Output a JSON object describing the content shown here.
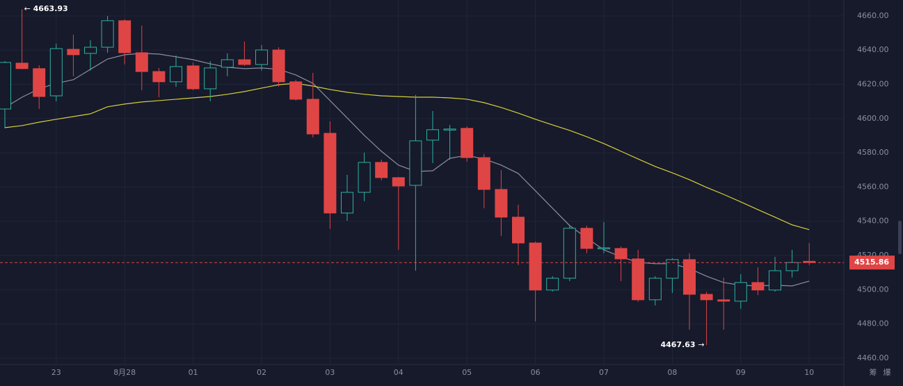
{
  "chart_data": {
    "type": "candlestick",
    "categories": [
      null,
      null,
      null,
      "23",
      null,
      null,
      null,
      "8月28",
      null,
      null,
      null,
      "01",
      null,
      null,
      null,
      "02",
      null,
      null,
      null,
      "03",
      null,
      null,
      null,
      "04",
      null,
      null,
      null,
      "05",
      null,
      null,
      null,
      "06",
      null,
      null,
      null,
      "07",
      null,
      null,
      null,
      "08",
      null,
      null,
      null,
      "09",
      null,
      null,
      null,
      "10"
    ],
    "open": [
      4605.6,
      4632.4,
      4629.2,
      4613.3,
      4640.5,
      4638.1,
      4641.7,
      4657.2,
      4638.5,
      4627.5,
      4621.5,
      4630.8,
      4617.4,
      4630.0,
      4634.4,
      4631.6,
      4640.1,
      4621.5,
      4611.3,
      4591.4,
      4544.8,
      4556.9,
      4574.4,
      4565.5,
      4561.0,
      4587.4,
      4593.5,
      4594.3,
      4577.2,
      4558.6,
      4542.4,
      4527.3,
      4499.8,
      4506.7,
      4535.9,
      4524.1,
      4524.1,
      4518.0,
      4494.1,
      4506.7,
      4517.6,
      4497.3,
      4494.1,
      4493.3,
      4504.2,
      4499.8,
      4511.1,
      4516.6
    ],
    "high": [
      4633.6,
      4663.93,
      4631.2,
      4643.8,
      4649.0,
      4645.8,
      4660.0,
      4658.0,
      4654.3,
      4629.6,
      4636.9,
      4632.8,
      4633.6,
      4638.1,
      4645.0,
      4643.0,
      4641.7,
      4622.7,
      4626.7,
      4598.3,
      4567.1,
      4580.1,
      4576.0,
      4565.9,
      4613.8,
      4604.4,
      4596.3,
      4595.5,
      4579.3,
      4569.9,
      4549.7,
      4528.1,
      4507.9,
      4537.5,
      4537.5,
      4539.5,
      4525.3,
      4523.3,
      4507.9,
      4518.4,
      4521.3,
      4498.9,
      4507.1,
      4509.1,
      4513.1,
      4519.2,
      4523.3,
      4527.3
    ],
    "low": [
      4594.3,
      4628.8,
      4605.6,
      4610.1,
      4624.7,
      4628.0,
      4638.5,
      4631.6,
      4616.6,
      4612.5,
      4618.6,
      4616.6,
      4610.1,
      4624.7,
      4630.8,
      4628.0,
      4618.6,
      4610.5,
      4589.0,
      4535.5,
      4540.3,
      4551.7,
      4563.9,
      4523.3,
      4511.1,
      4574.0,
      4576.0,
      4574.8,
      4547.6,
      4531.4,
      4514.4,
      4481.5,
      4498.9,
      4505.0,
      4521.3,
      4521.3,
      4505.0,
      4492.9,
      4490.8,
      4498.1,
      4476.6,
      4467.63,
      4476.6,
      4488.8,
      4496.9,
      4498.9,
      4507.1,
      4514.4
    ],
    "close": [
      4632.8,
      4629.2,
      4612.9,
      4640.9,
      4637.3,
      4641.7,
      4657.2,
      4638.5,
      4627.5,
      4621.5,
      4630.4,
      4617.4,
      4629.6,
      4634.4,
      4631.6,
      4640.1,
      4621.5,
      4611.3,
      4591.0,
      4544.8,
      4556.9,
      4574.4,
      4565.5,
      4560.6,
      4587.0,
      4593.5,
      4593.9,
      4577.2,
      4558.6,
      4542.4,
      4527.3,
      4499.8,
      4506.7,
      4535.9,
      4524.1,
      4524.5,
      4518.0,
      4494.1,
      4506.7,
      4517.6,
      4497.3,
      4494.1,
      4493.3,
      4504.2,
      4499.8,
      4511.1,
      4515.9,
      4515.86
    ],
    "up_color": "#2fb2a3",
    "down_color": "#e04545",
    "lines": [
      {
        "color": "#8c8f9e",
        "values": [
          4606.4,
          4612.5,
          4617.4,
          4620.6,
          4622.7,
          4628.8,
          4634.8,
          4637.3,
          4638.1,
          4637.7,
          4636.1,
          4634.4,
          4632.0,
          4630.0,
          4629.2,
          4629.6,
          4628.8,
          4625.5,
          4620.6,
          4610.5,
          4600.4,
          4590.2,
          4580.9,
          4572.8,
          4569.1,
          4569.5,
          4576.8,
          4578.5,
          4576.4,
          4572.8,
          4567.9,
          4557.8,
          4547.6,
          4537.5,
          4530.2,
          4523.3,
          4519.2,
          4516.0,
          4515.2,
          4515.2,
          4512.3,
          4507.9,
          4504.2,
          4502.6,
          4502.2,
          4502.6,
          4502.2,
          4505.0
        ]
      },
      {
        "color": "#d8cf3a",
        "values": [
          4594.7,
          4595.9,
          4597.9,
          4599.6,
          4601.2,
          4602.8,
          4606.9,
          4608.5,
          4609.7,
          4610.5,
          4611.3,
          4612.1,
          4612.9,
          4614.2,
          4615.8,
          4617.8,
          4619.8,
          4620.6,
          4619.0,
          4617.0,
          4615.4,
          4614.2,
          4613.3,
          4612.9,
          4612.5,
          4612.5,
          4612.1,
          4611.3,
          4609.3,
          4606.5,
          4603.2,
          4599.6,
          4596.3,
          4593.1,
          4589.4,
          4585.4,
          4580.9,
          4576.4,
          4572.0,
          4568.3,
          4564.3,
          4559.8,
          4555.7,
          4551.3,
          4546.8,
          4542.4,
          4537.9,
          4535.1
        ]
      }
    ],
    "ylim": [
      4456.3,
      4669.3
    ],
    "yticks": [
      {
        "value": 4460,
        "label": "4460.00"
      },
      {
        "value": 4480,
        "label": "4480.00"
      },
      {
        "value": 4500,
        "label": "4500.00"
      },
      {
        "value": 4520,
        "label": "4520.00"
      },
      {
        "value": 4540,
        "label": "4540.00"
      },
      {
        "value": 4560,
        "label": "4560.00"
      },
      {
        "value": 4580,
        "label": "4580.00"
      },
      {
        "value": 4600,
        "label": "4600.00"
      },
      {
        "value": 4620,
        "label": "4620.00"
      },
      {
        "value": 4640,
        "label": "4640.00"
      },
      {
        "value": 4660,
        "label": "4660.00"
      }
    ],
    "grid": true,
    "max_marker": 4663.93,
    "min_marker": 4467.63,
    "last_price": 4515.86,
    "toolbar": [
      "筹",
      "爆"
    ]
  }
}
